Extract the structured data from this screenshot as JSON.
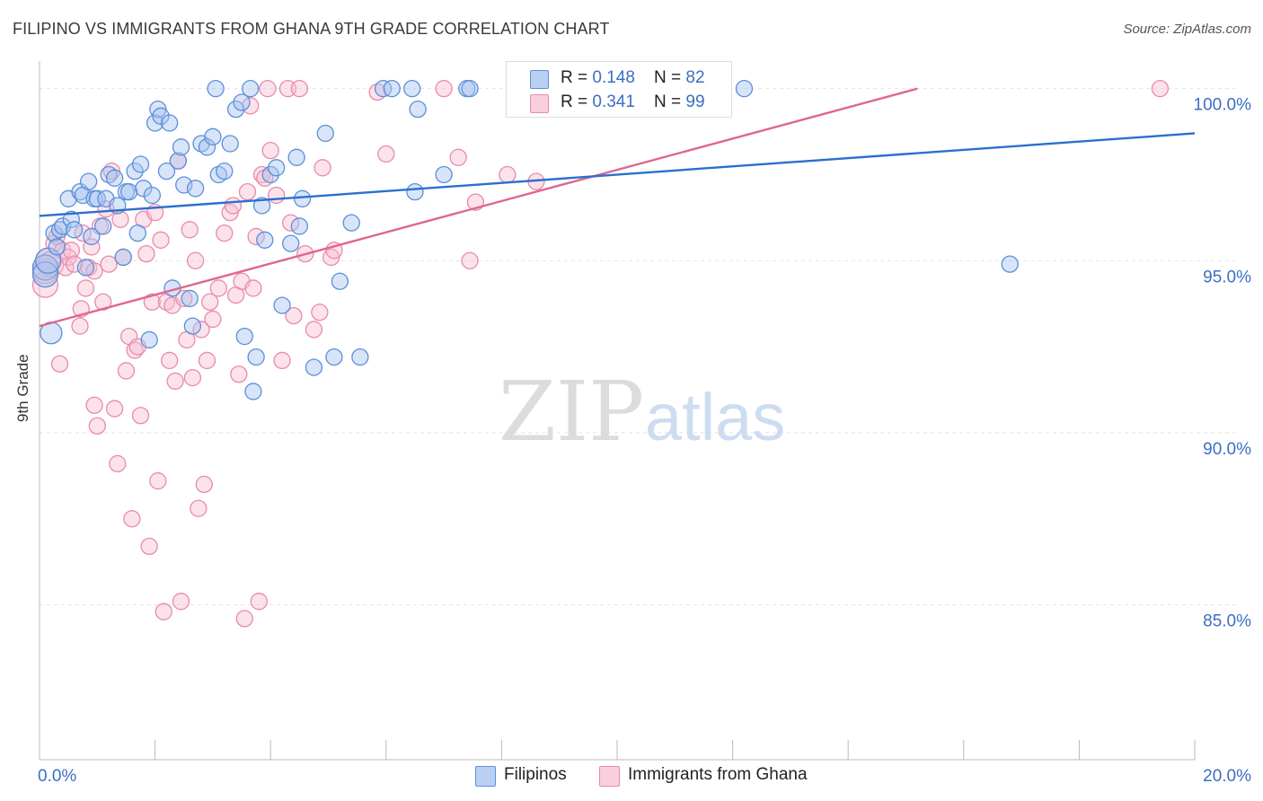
{
  "title": "FILIPINO VS IMMIGRANTS FROM GHANA 9TH GRADE CORRELATION CHART",
  "source": "Source: ZipAtlas.com",
  "watermark": {
    "zip": "ZIP",
    "atlas": "atlas"
  },
  "colors": {
    "blue_fill": "#a9c4ef",
    "blue_stroke": "#5b8fd9",
    "blue_line": "#2a6fd0",
    "pink_fill": "#f7bfd2",
    "pink_stroke": "#e98aaa",
    "pink_line": "#e0668f",
    "axis_text": "#3b6fc4",
    "grid": "#e4e4e4"
  },
  "legend": {
    "rows": [
      {
        "r_label": "R = ",
        "r_value": "0.148",
        "n_label": "N = ",
        "n_value": "82",
        "color": "#a9c4ef"
      },
      {
        "r_label": "R = ",
        "r_value": "0.341",
        "n_label": "N = ",
        "n_value": "99",
        "color": "#f7bfd2"
      }
    ]
  },
  "bottom_legend": [
    {
      "label": "Filipinos",
      "color": "#a9c4ef"
    },
    {
      "label": "Immigrants from Ghana",
      "color": "#f7bfd2"
    }
  ],
  "chart_data": {
    "type": "scatter",
    "title": "FILIPINO VS IMMIGRANTS FROM GHANA 9TH GRADE CORRELATION CHART",
    "xlabel": "",
    "ylabel": "9th Grade",
    "xlim": [
      0,
      20
    ],
    "ylim": [
      80.5,
      100.8
    ],
    "x_tick_labels": [
      {
        "value": 0,
        "label": "0.0%"
      },
      {
        "value": 20,
        "label": "20.0%"
      }
    ],
    "x_minor_ticks": [
      2,
      4,
      6,
      8,
      10,
      12,
      14,
      16,
      18,
      20
    ],
    "y_ticks": [
      {
        "value": 100,
        "label": "100.0%"
      },
      {
        "value": 95,
        "label": "95.0%"
      },
      {
        "value": 90,
        "label": "90.0%"
      },
      {
        "value": 85,
        "label": "85.0%"
      }
    ],
    "series": [
      {
        "name": "Filipinos",
        "r": 0.148,
        "n": 82,
        "trend": {
          "x0": 0,
          "y0": 96.3,
          "x1": 20,
          "y1": 98.7
        },
        "points": [
          [
            0.1,
            94.8
          ],
          [
            0.1,
            94.6
          ],
          [
            0.15,
            95.0
          ],
          [
            0.2,
            92.9
          ],
          [
            0.25,
            95.8
          ],
          [
            0.3,
            95.4
          ],
          [
            0.35,
            95.9
          ],
          [
            0.4,
            96.0
          ],
          [
            0.5,
            96.8
          ],
          [
            0.55,
            96.2
          ],
          [
            0.6,
            95.9
          ],
          [
            0.7,
            97.0
          ],
          [
            0.75,
            96.9
          ],
          [
            0.8,
            94.8
          ],
          [
            0.85,
            97.3
          ],
          [
            0.9,
            95.7
          ],
          [
            0.95,
            96.8
          ],
          [
            1.0,
            96.8
          ],
          [
            1.1,
            96.0
          ],
          [
            1.15,
            96.8
          ],
          [
            1.2,
            97.5
          ],
          [
            1.3,
            97.4
          ],
          [
            1.35,
            96.6
          ],
          [
            1.45,
            95.1
          ],
          [
            1.5,
            97.0
          ],
          [
            1.55,
            97.0
          ],
          [
            1.65,
            97.6
          ],
          [
            1.7,
            95.8
          ],
          [
            1.75,
            97.8
          ],
          [
            1.8,
            97.1
          ],
          [
            1.9,
            92.7
          ],
          [
            1.95,
            96.9
          ],
          [
            2.0,
            99.0
          ],
          [
            2.05,
            99.4
          ],
          [
            2.1,
            99.2
          ],
          [
            2.2,
            97.6
          ],
          [
            2.25,
            99.0
          ],
          [
            2.3,
            94.2
          ],
          [
            2.4,
            97.9
          ],
          [
            2.45,
            98.3
          ],
          [
            2.5,
            97.2
          ],
          [
            2.6,
            93.9
          ],
          [
            2.65,
            93.1
          ],
          [
            2.7,
            97.1
          ],
          [
            2.8,
            98.4
          ],
          [
            2.9,
            98.3
          ],
          [
            3.0,
            98.6
          ],
          [
            3.05,
            100.0
          ],
          [
            3.1,
            97.5
          ],
          [
            3.2,
            97.6
          ],
          [
            3.3,
            98.4
          ],
          [
            3.4,
            99.4
          ],
          [
            3.5,
            99.6
          ],
          [
            3.55,
            92.8
          ],
          [
            3.65,
            100.0
          ],
          [
            3.7,
            91.2
          ],
          [
            3.75,
            92.2
          ],
          [
            3.85,
            96.6
          ],
          [
            3.9,
            95.6
          ],
          [
            4.0,
            97.5
          ],
          [
            4.1,
            97.7
          ],
          [
            4.2,
            93.7
          ],
          [
            4.35,
            95.5
          ],
          [
            4.45,
            98.0
          ],
          [
            4.5,
            96.0
          ],
          [
            4.55,
            96.8
          ],
          [
            4.75,
            91.9
          ],
          [
            4.95,
            98.7
          ],
          [
            5.1,
            92.2
          ],
          [
            5.2,
            94.4
          ],
          [
            5.4,
            96.1
          ],
          [
            5.55,
            92.2
          ],
          [
            5.95,
            100.0
          ],
          [
            6.1,
            100.0
          ],
          [
            6.45,
            100.0
          ],
          [
            6.55,
            99.4
          ],
          [
            6.5,
            97.0
          ],
          [
            7.0,
            97.5
          ],
          [
            7.4,
            100.0
          ],
          [
            7.45,
            100.0
          ],
          [
            12.2,
            100.0
          ],
          [
            16.8,
            94.9
          ]
        ]
      },
      {
        "name": "Immigrants from Ghana",
        "r": 0.341,
        "n": 99,
        "trend": {
          "x0": 0,
          "y0": 93.1,
          "x1": 15.2,
          "y1": 100.0
        },
        "points": [
          [
            0.1,
            94.3
          ],
          [
            0.1,
            94.7
          ],
          [
            0.15,
            95.0
          ],
          [
            0.2,
            94.9
          ],
          [
            0.25,
            95.5
          ],
          [
            0.3,
            95.7
          ],
          [
            0.35,
            92.0
          ],
          [
            0.4,
            95.3
          ],
          [
            0.45,
            94.8
          ],
          [
            0.5,
            95.1
          ],
          [
            0.55,
            95.3
          ],
          [
            0.6,
            94.9
          ],
          [
            0.7,
            93.1
          ],
          [
            0.72,
            93.6
          ],
          [
            0.75,
            95.8
          ],
          [
            0.8,
            94.2
          ],
          [
            0.85,
            94.8
          ],
          [
            0.9,
            95.4
          ],
          [
            0.95,
            94.7
          ],
          [
            0.95,
            90.8
          ],
          [
            1.0,
            90.2
          ],
          [
            1.05,
            96.0
          ],
          [
            1.1,
            93.8
          ],
          [
            1.15,
            96.5
          ],
          [
            1.2,
            94.9
          ],
          [
            1.25,
            97.6
          ],
          [
            1.3,
            90.7
          ],
          [
            1.35,
            89.1
          ],
          [
            1.4,
            96.2
          ],
          [
            1.45,
            95.1
          ],
          [
            1.5,
            91.8
          ],
          [
            1.55,
            92.8
          ],
          [
            1.6,
            87.5
          ],
          [
            1.65,
            92.4
          ],
          [
            1.7,
            92.5
          ],
          [
            1.75,
            90.5
          ],
          [
            1.8,
            96.2
          ],
          [
            1.85,
            95.2
          ],
          [
            1.9,
            86.7
          ],
          [
            1.95,
            93.8
          ],
          [
            2.0,
            96.4
          ],
          [
            2.05,
            88.6
          ],
          [
            2.1,
            95.6
          ],
          [
            2.15,
            84.8
          ],
          [
            2.2,
            93.8
          ],
          [
            2.25,
            92.1
          ],
          [
            2.3,
            93.7
          ],
          [
            2.35,
            91.5
          ],
          [
            2.4,
            97.9
          ],
          [
            2.45,
            85.1
          ],
          [
            2.5,
            93.9
          ],
          [
            2.55,
            92.7
          ],
          [
            2.6,
            95.9
          ],
          [
            2.65,
            91.6
          ],
          [
            2.7,
            95.0
          ],
          [
            2.75,
            87.8
          ],
          [
            2.8,
            93.0
          ],
          [
            2.85,
            88.5
          ],
          [
            2.9,
            92.1
          ],
          [
            2.95,
            93.8
          ],
          [
            3.0,
            93.3
          ],
          [
            3.1,
            94.2
          ],
          [
            3.2,
            95.8
          ],
          [
            3.3,
            96.4
          ],
          [
            3.35,
            96.6
          ],
          [
            3.4,
            94.0
          ],
          [
            3.45,
            91.7
          ],
          [
            3.5,
            94.4
          ],
          [
            3.55,
            84.6
          ],
          [
            3.6,
            97.0
          ],
          [
            3.65,
            99.5
          ],
          [
            3.7,
            94.2
          ],
          [
            3.75,
            95.7
          ],
          [
            3.8,
            85.1
          ],
          [
            3.85,
            97.5
          ],
          [
            3.9,
            97.4
          ],
          [
            3.95,
            100.0
          ],
          [
            4.0,
            98.2
          ],
          [
            4.1,
            96.9
          ],
          [
            4.2,
            92.1
          ],
          [
            4.3,
            100.0
          ],
          [
            4.35,
            96.1
          ],
          [
            4.4,
            93.4
          ],
          [
            4.5,
            100.0
          ],
          [
            4.6,
            95.2
          ],
          [
            4.75,
            93.0
          ],
          [
            4.85,
            93.5
          ],
          [
            4.9,
            97.7
          ],
          [
            5.05,
            95.1
          ],
          [
            5.1,
            95.3
          ],
          [
            5.85,
            99.9
          ],
          [
            6.0,
            98.1
          ],
          [
            7.0,
            100.0
          ],
          [
            7.25,
            98.0
          ],
          [
            7.45,
            95.0
          ],
          [
            7.55,
            96.7
          ],
          [
            8.1,
            97.5
          ],
          [
            8.6,
            97.3
          ],
          [
            19.4,
            100.0
          ]
        ]
      }
    ]
  }
}
